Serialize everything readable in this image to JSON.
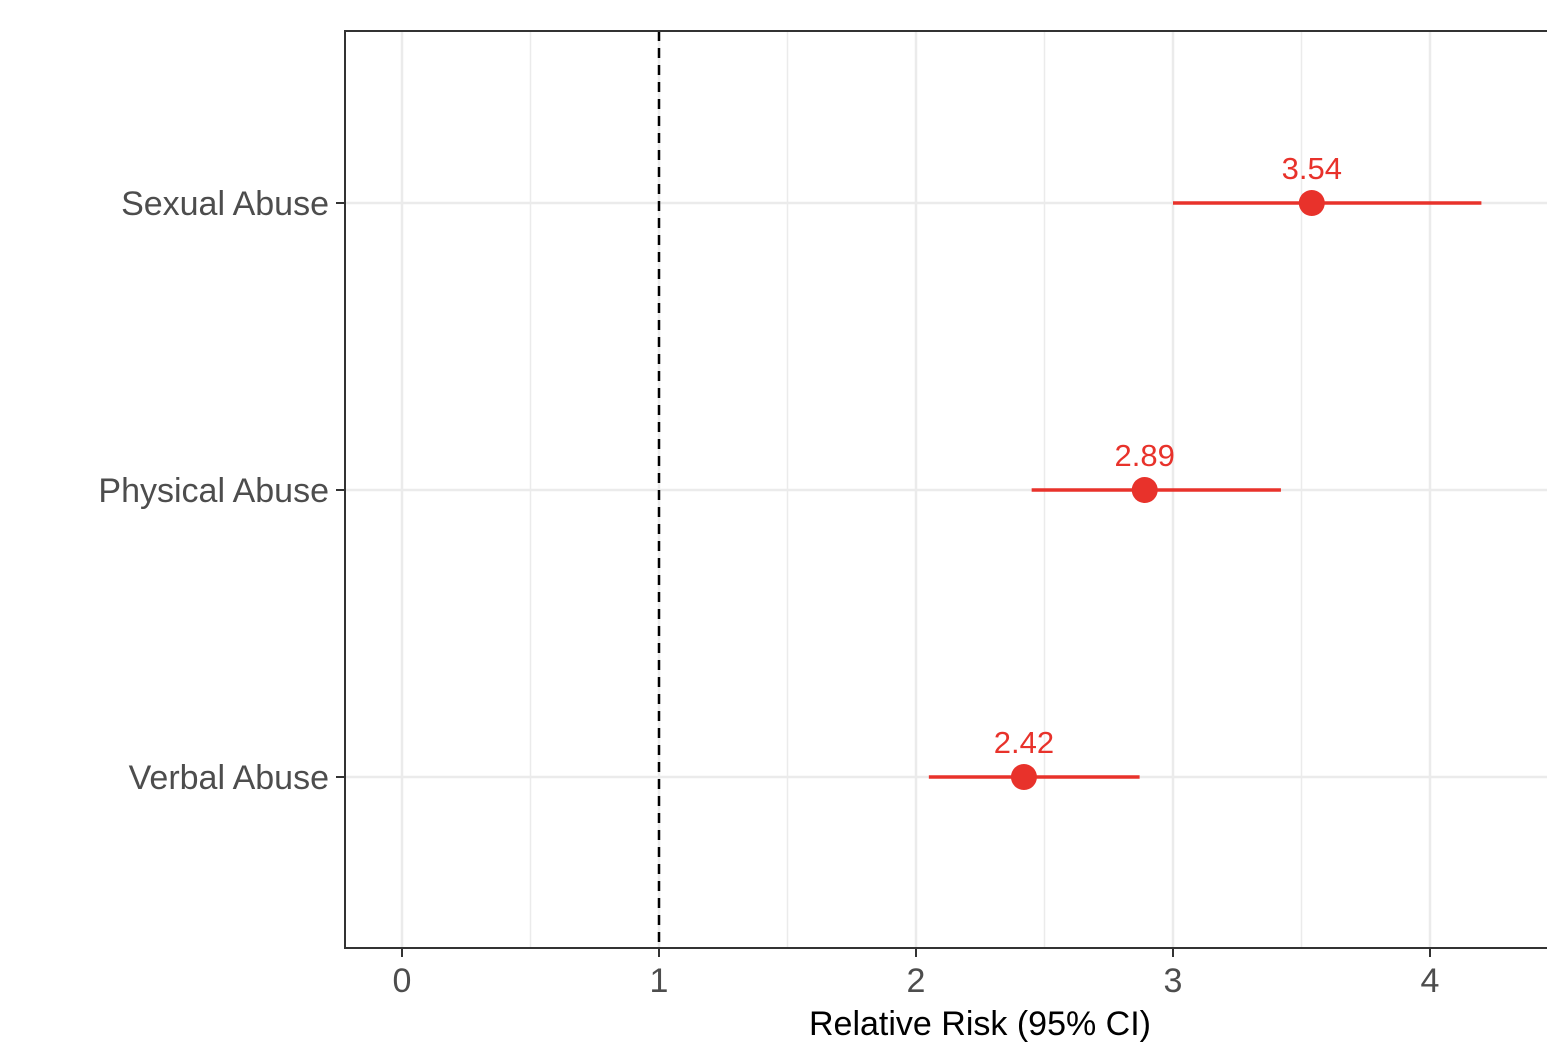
{
  "chart_data": {
    "type": "forest",
    "xlabel": "Relative Risk (95% CI)",
    "ylabel": "",
    "xlim": [
      -0.22,
      4.45
    ],
    "xticks": [
      0,
      1,
      2,
      3,
      4
    ],
    "x_minor_gridlines": [
      0.5,
      1.5,
      2.5,
      3.5
    ],
    "reference_line": 1,
    "grid": true,
    "categories": [
      "Sexual Abuse",
      "Physical Abuse",
      "Verbal Abuse"
    ],
    "series": [
      {
        "estimates": [
          3.54,
          2.89,
          2.42
        ],
        "ci_low": [
          3.0,
          2.45,
          2.05
        ],
        "ci_high": [
          4.2,
          3.42,
          2.87
        ],
        "labels": [
          "3.54",
          "2.89",
          "2.42"
        ]
      }
    ],
    "colors": {
      "point": "#e8322b",
      "reference_line": "#000000",
      "grid": "#ebebeb",
      "panel_border": "#333333"
    }
  }
}
